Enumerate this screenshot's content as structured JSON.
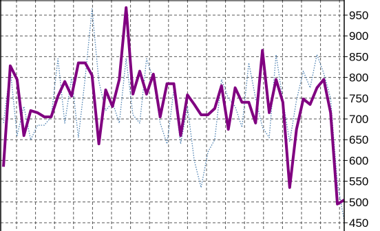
{
  "chart_data": {
    "type": "line",
    "title": "",
    "xlabel": "",
    "ylabel": "",
    "ylim": [
      450,
      950
    ],
    "yticks": [
      450,
      500,
      550,
      600,
      650,
      700,
      750,
      800,
      850,
      900,
      950
    ],
    "ytick_labels": [
      "450",
      "500",
      "550",
      "600",
      "650",
      "700",
      "750",
      "800",
      "850",
      "900",
      "950"
    ],
    "y_axis_position": "right",
    "grid": true,
    "legend": "none",
    "series": [
      {
        "style": "solid-thick",
        "color": "#800080",
        "values": [
          585,
          828,
          795,
          660,
          720,
          715,
          705,
          705,
          755,
          790,
          755,
          835,
          835,
          805,
          640,
          770,
          730,
          795,
          968,
          760,
          815,
          760,
          808,
          705,
          785,
          785,
          660,
          758,
          735,
          710,
          710,
          725,
          780,
          675,
          775,
          740,
          740,
          690,
          865,
          715,
          795,
          740,
          535,
          675,
          748,
          735,
          775,
          795,
          715,
          495,
          505
        ]
      },
      {
        "style": "dotted",
        "color": "#4a7fb0",
        "values": [
          690,
          820,
          660,
          730,
          650,
          685,
          685,
          705,
          845,
          690,
          800,
          655,
          800,
          965,
          790,
          720,
          740,
          690,
          845,
          710,
          690,
          845,
          795,
          690,
          640,
          770,
          640,
          730,
          600,
          535,
          620,
          650,
          795,
          750,
          730,
          680,
          835,
          750,
          680,
          655,
          855,
          745,
          645,
          745,
          815,
          775,
          855,
          810,
          750,
          545,
          455
        ]
      }
    ]
  }
}
